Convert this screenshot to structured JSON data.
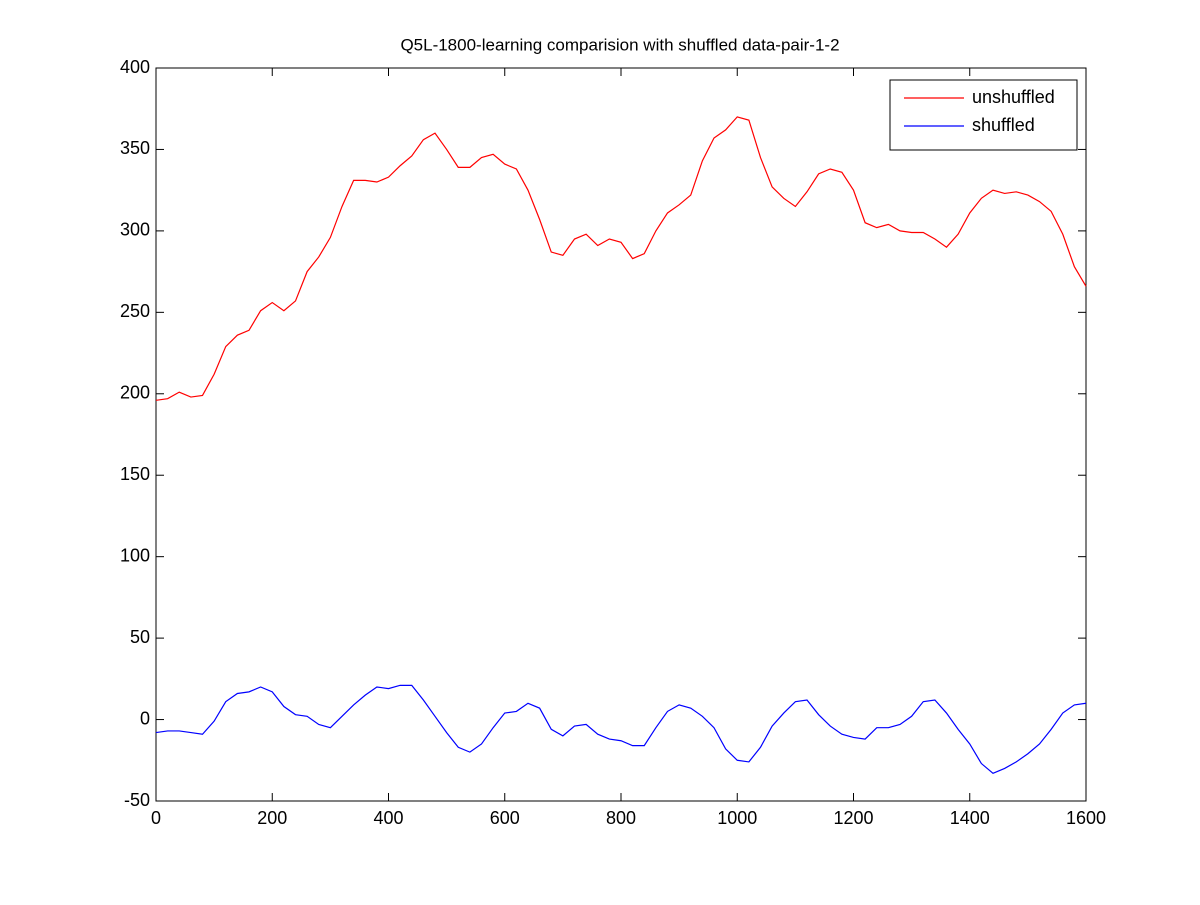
{
  "chart_data": {
    "type": "line",
    "title": "Q5L-1800-learning comparision with shuffled data-pair-1-2",
    "x": [
      0,
      20,
      40,
      60,
      80,
      100,
      120,
      140,
      160,
      180,
      200,
      220,
      240,
      260,
      280,
      300,
      320,
      340,
      360,
      380,
      400,
      420,
      440,
      460,
      480,
      500,
      520,
      540,
      560,
      580,
      600,
      620,
      640,
      660,
      680,
      700,
      720,
      740,
      760,
      780,
      800,
      820,
      840,
      860,
      880,
      900,
      920,
      940,
      960,
      980,
      1000,
      1020,
      1040,
      1060,
      1080,
      1100,
      1120,
      1140,
      1160,
      1180,
      1200,
      1220,
      1240,
      1260,
      1280,
      1300,
      1320,
      1340,
      1360,
      1380,
      1400,
      1420,
      1440,
      1460,
      1480,
      1500,
      1520,
      1540,
      1560,
      1580,
      1600
    ],
    "series": [
      {
        "name": "unshuffled",
        "color": "#ff0000",
        "values": [
          196,
          197,
          201,
          198,
          199,
          212,
          229,
          236,
          239,
          251,
          256,
          251,
          257,
          275,
          284,
          296,
          315,
          331,
          331,
          330,
          333,
          340,
          346,
          356,
          360,
          350,
          339,
          339,
          345,
          347,
          341,
          338,
          325,
          307,
          287,
          285,
          295,
          298,
          291,
          295,
          293,
          283,
          286,
          300,
          311,
          316,
          322,
          343,
          357,
          362,
          370,
          368,
          345,
          327,
          320,
          315,
          324,
          335,
          338,
          336,
          325,
          305,
          302,
          304,
          300,
          299,
          299,
          295,
          290,
          298,
          311,
          320,
          325,
          323,
          324,
          322,
          318,
          312,
          298,
          278,
          266
        ]
      },
      {
        "name": "shuffled",
        "color": "#0000ff",
        "values": [
          -8,
          -7,
          -7,
          -8,
          -9,
          -1,
          11,
          16,
          17,
          20,
          17,
          8,
          3,
          2,
          -3,
          -5,
          2,
          9,
          15,
          20,
          19,
          21,
          21,
          12,
          2,
          -8,
          -17,
          -20,
          -15,
          -5,
          4,
          5,
          10,
          7,
          -6,
          -10,
          -4,
          -3,
          -9,
          -12,
          -13,
          -16,
          -16,
          -5,
          5,
          9,
          7,
          2,
          -5,
          -18,
          -25,
          -26,
          -17,
          -4,
          4,
          11,
          12,
          3,
          -4,
          -9,
          -11,
          -12,
          -5,
          -5,
          -3,
          2,
          11,
          12,
          4,
          -6,
          -15,
          -27,
          -33,
          -30,
          -26,
          -21,
          -15,
          -6,
          4,
          9,
          10
        ]
      }
    ],
    "xlim": [
      0,
      1600
    ],
    "xticks": [
      0,
      200,
      400,
      600,
      800,
      1000,
      1200,
      1400,
      1600
    ],
    "ylim": [
      -50,
      400
    ],
    "yticks": [
      -50,
      0,
      50,
      100,
      150,
      200,
      250,
      300,
      350,
      400
    ],
    "grid": false,
    "legend": "upper-right"
  }
}
